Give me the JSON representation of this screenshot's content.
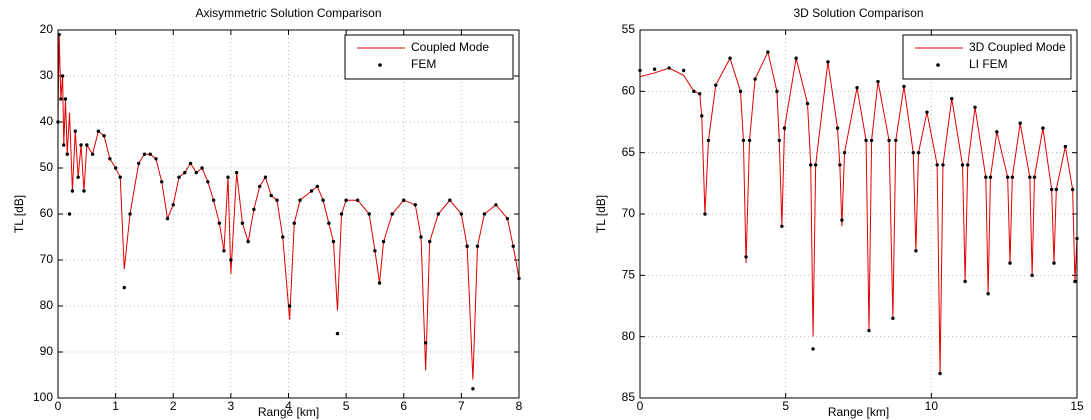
{
  "chart_data": [
    {
      "type": "line",
      "title": "Axisymmetric Solution Comparison",
      "xlabel": "Range [km]",
      "ylabel": "TL [dB]",
      "xlim": [
        0,
        8
      ],
      "xticks": [
        0,
        1,
        2,
        3,
        4,
        5,
        6,
        7,
        8
      ],
      "ylim": [
        20,
        100
      ],
      "yticks": [
        20,
        30,
        40,
        50,
        60,
        70,
        80,
        90,
        100
      ],
      "y_reversed": true,
      "grid": true,
      "legend": "top-right",
      "x": [
        0,
        0.02,
        0.05,
        0.08,
        0.1,
        0.13,
        0.16,
        0.2,
        0.25,
        0.3,
        0.35,
        0.4,
        0.45,
        0.5,
        0.6,
        0.7,
        0.8,
        0.9,
        1.0,
        1.08,
        1.15,
        1.25,
        1.4,
        1.5,
        1.6,
        1.7,
        1.8,
        1.9,
        2.0,
        2.1,
        2.2,
        2.3,
        2.4,
        2.5,
        2.6,
        2.7,
        2.8,
        2.88,
        2.95,
        3.0,
        3.1,
        3.2,
        3.3,
        3.4,
        3.5,
        3.6,
        3.7,
        3.8,
        3.9,
        4.02,
        4.1,
        4.2,
        4.4,
        4.5,
        4.6,
        4.7,
        4.78,
        4.85,
        4.92,
        5.0,
        5.2,
        5.4,
        5.5,
        5.58,
        5.65,
        5.8,
        6.0,
        6.2,
        6.3,
        6.38,
        6.45,
        6.6,
        6.8,
        7.0,
        7.1,
        7.2,
        7.28,
        7.4,
        7.6,
        7.8,
        7.9,
        8.0
      ],
      "series": [
        {
          "name": "Coupled Mode",
          "style": "line",
          "color": "#e00000",
          "values": [
            40,
            21,
            35,
            30,
            45,
            35,
            47,
            38,
            55,
            42,
            52,
            45,
            55,
            45,
            47,
            42,
            43,
            48,
            50,
            52,
            72,
            60,
            49,
            47,
            47,
            48,
            53,
            61,
            58,
            52,
            51,
            49,
            51,
            50,
            53,
            57,
            62,
            68,
            52,
            73,
            51,
            62,
            66,
            59,
            54,
            52,
            56,
            57,
            65,
            83,
            62,
            57,
            55,
            54,
            57,
            62,
            66,
            81,
            60,
            57,
            57,
            60,
            68,
            75,
            66,
            60,
            57,
            58,
            65,
            94,
            66,
            60,
            57,
            60,
            67,
            96,
            67,
            60,
            58,
            61,
            67,
            74
          ]
        },
        {
          "name": "FEM",
          "style": "dots",
          "color": "#000000",
          "values": [
            40,
            21,
            35,
            30,
            45,
            35,
            47,
            60,
            55,
            42,
            52,
            45,
            55,
            45,
            47,
            42,
            43,
            48,
            50,
            52,
            76,
            60,
            49,
            47,
            47,
            48,
            53,
            61,
            58,
            52,
            51,
            49,
            51,
            50,
            53,
            57,
            62,
            68,
            52,
            70,
            51,
            62,
            66,
            59,
            54,
            52,
            56,
            57,
            65,
            80,
            62,
            57,
            55,
            54,
            57,
            62,
            66,
            86,
            60,
            57,
            57,
            60,
            68,
            75,
            66,
            60,
            57,
            58,
            65,
            88,
            66,
            60,
            57,
            60,
            67,
            98,
            67,
            60,
            58,
            61,
            67,
            74
          ]
        }
      ]
    },
    {
      "type": "line",
      "title": "3D Solution Comparison",
      "xlabel": "Range [km]",
      "ylabel": "TL [dB]",
      "xlim": [
        0,
        15
      ],
      "xticks": [
        0,
        5,
        10,
        15
      ],
      "ylim": [
        55,
        85
      ],
      "yticks": [
        55,
        60,
        65,
        70,
        75,
        80,
        85
      ],
      "y_reversed": true,
      "grid": true,
      "legend": "top-right",
      "x": [
        0,
        0.5,
        1.0,
        1.5,
        1.85,
        2.05,
        2.12,
        2.23,
        2.35,
        2.6,
        3.09,
        3.45,
        3.55,
        3.64,
        3.76,
        3.95,
        4.39,
        4.7,
        4.78,
        4.87,
        4.96,
        5.36,
        5.75,
        5.86,
        5.94,
        6.03,
        6.45,
        6.78,
        6.86,
        6.93,
        7.02,
        7.45,
        7.76,
        7.86,
        7.95,
        8.17,
        8.55,
        8.68,
        8.78,
        9.06,
        9.38,
        9.47,
        9.56,
        9.85,
        10.2,
        10.3,
        10.4,
        10.7,
        11.07,
        11.16,
        11.25,
        11.5,
        11.87,
        11.95,
        12.03,
        12.25,
        12.62,
        12.7,
        12.78,
        13.05,
        13.38,
        13.46,
        13.54,
        13.83,
        14.13,
        14.21,
        14.29,
        14.6,
        14.85,
        14.93,
        15
      ],
      "series": [
        {
          "name": "3D Coupled Mode",
          "style": "line",
          "color": "#e00000",
          "values": [
            58.8,
            58.5,
            58.1,
            58.7,
            60.0,
            60.2,
            62,
            70,
            64,
            59.5,
            57.3,
            60,
            64,
            74,
            64,
            59,
            56.8,
            60,
            64,
            71,
            63,
            57.3,
            61,
            66,
            80,
            66,
            57.6,
            63,
            66,
            71,
            65,
            59.7,
            64,
            79.5,
            64,
            59.2,
            64,
            78.5,
            64,
            59.6,
            65,
            73,
            65,
            61.7,
            66,
            83,
            66,
            60.6,
            66,
            75.5,
            66,
            61.3,
            67,
            76.5,
            67,
            63.3,
            67,
            74,
            67,
            62.6,
            67,
            75,
            67,
            63,
            68,
            74,
            68,
            64.5,
            68,
            75.5,
            72
          ]
        },
        {
          "name": "LI FEM",
          "style": "dots",
          "color": "#000000",
          "values": [
            58.3,
            58.2,
            58.1,
            58.3,
            60.0,
            60.2,
            62,
            70,
            64,
            59.5,
            57.3,
            60,
            64,
            73.5,
            64,
            59,
            56.8,
            60,
            64,
            71,
            63,
            57.3,
            61,
            66,
            81,
            66,
            57.6,
            63,
            66,
            70.5,
            65,
            59.7,
            64,
            79.5,
            64,
            59.2,
            64,
            78.5,
            64,
            59.6,
            65,
            73,
            65,
            61.7,
            66,
            83,
            66,
            60.6,
            66,
            75.5,
            66,
            61.3,
            67,
            76.5,
            67,
            63.3,
            67,
            74,
            67,
            62.6,
            67,
            75,
            67,
            63,
            68,
            74,
            68,
            64.5,
            68,
            75.5,
            72
          ]
        }
      ]
    }
  ]
}
